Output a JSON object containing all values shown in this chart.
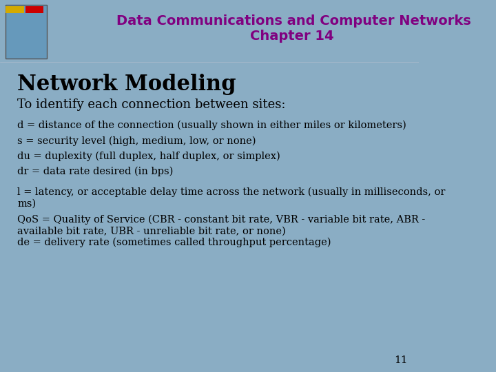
{
  "bg_color": "#8aadc4",
  "header_bg": "#8aadc4",
  "title_line1": "Data Communications and Computer Networks",
  "title_line2": "Chapter 14",
  "title_color": "#800080",
  "slide_title": "Network Modeling",
  "slide_title_color": "#000000",
  "subtitle": "To identify each connection between sites:",
  "subtitle_color": "#000000",
  "bullet_points": [
    "d = distance of the connection (usually shown in either miles or kilometers)",
    "s = security level (high, medium, low, or none)",
    "du = duplexity (full duplex, half duplex, or simplex)",
    "dr = data rate desired (in bps)",
    "l = latency, or acceptable delay time across the network (usually in milliseconds, or\nms)",
    "QoS = Quality of Service (CBR - constant bit rate, VBR - variable bit rate, ABR -\navailable bit rate, UBR - unreliable bit rate, or none)",
    "de = delivery rate (sometimes called throughput percentage)"
  ],
  "bullet_color": "#000000",
  "page_number": "11",
  "page_number_color": "#000000",
  "header_divider_color": "#d4aa00",
  "header_divider_color2": "#cc0000"
}
